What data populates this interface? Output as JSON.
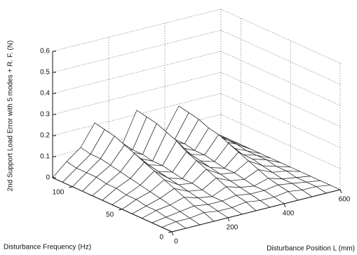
{
  "chart_data": {
    "type": "mesh",
    "xlabel": "Disturbance Position L (mm)",
    "ylabel": "Disturbance Frequency (Hz)",
    "zlabel": "2nd Support Load Error with 5 modes + R. F. (N)",
    "x": [
      0,
      50,
      100,
      150,
      200,
      250,
      300,
      350,
      400,
      450,
      500,
      550,
      600
    ],
    "y": [
      0,
      10,
      20,
      30,
      40,
      50,
      60,
      70,
      80,
      90,
      100,
      110,
      120
    ],
    "z": [
      [
        0,
        0,
        0,
        0,
        0,
        0,
        0,
        0,
        0,
        0,
        0,
        0,
        0
      ],
      [
        0,
        0.01,
        0.01,
        0.02,
        0.01,
        0.01,
        0.02,
        0.01,
        0.01,
        0.02,
        0.01,
        0.01,
        0
      ],
      [
        0,
        0.01,
        0.02,
        0.03,
        0.02,
        0.02,
        0.03,
        0.02,
        0.02,
        0.03,
        0.02,
        0.01,
        0
      ],
      [
        0,
        0.02,
        0.03,
        0.05,
        0.03,
        0.02,
        0.05,
        0.03,
        0.02,
        0.04,
        0.02,
        0.01,
        0
      ],
      [
        0,
        0.02,
        0.04,
        0.07,
        0.04,
        0.03,
        0.07,
        0.04,
        0.03,
        0.06,
        0.03,
        0.02,
        0
      ],
      [
        0,
        0.03,
        0.05,
        0.09,
        0.05,
        0.04,
        0.09,
        0.05,
        0.04,
        0.08,
        0.04,
        0.02,
        0
      ],
      [
        0,
        0.03,
        0.06,
        0.11,
        0.06,
        0.04,
        0.11,
        0.06,
        0.04,
        0.1,
        0.05,
        0.03,
        0
      ],
      [
        0,
        0.04,
        0.07,
        0.13,
        0.07,
        0.05,
        0.13,
        0.07,
        0.05,
        0.12,
        0.05,
        0.03,
        0
      ],
      [
        0,
        0.04,
        0.08,
        0.15,
        0.08,
        0.06,
        0.16,
        0.08,
        0.06,
        0.14,
        0.06,
        0.03,
        0
      ],
      [
        0,
        0.05,
        0.09,
        0.17,
        0.09,
        0.06,
        0.18,
        0.09,
        0.06,
        0.15,
        0.07,
        0.04,
        0
      ],
      [
        0,
        0.05,
        0.1,
        0.19,
        0.1,
        0.07,
        0.2,
        0.1,
        0.07,
        0.17,
        0.07,
        0.04,
        0
      ],
      [
        0,
        0.05,
        0.1,
        0.2,
        0.1,
        0.07,
        0.21,
        0.11,
        0.07,
        0.18,
        0.08,
        0.04,
        0
      ],
      [
        0,
        0.06,
        0.11,
        0.21,
        0.11,
        0.08,
        0.22,
        0.11,
        0.08,
        0.19,
        0.08,
        0.04,
        0
      ]
    ],
    "xlim": [
      0,
      600
    ],
    "xticks": [
      0,
      200,
      400,
      600
    ],
    "ylim": [
      0,
      120
    ],
    "yticks": [
      0,
      50,
      100
    ],
    "zlim": [
      0,
      0.6
    ],
    "zticks": [
      0,
      0.1,
      0.2,
      0.3,
      0.4,
      0.5,
      0.6
    ],
    "grid": true
  }
}
